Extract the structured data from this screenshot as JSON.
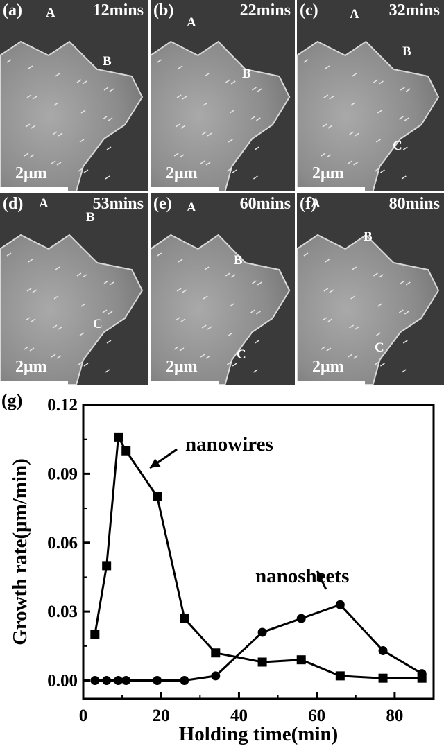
{
  "panels": [
    {
      "label": "(a)",
      "time": "12mins",
      "scale": "2μm",
      "markers": [
        "A",
        "B"
      ]
    },
    {
      "label": "(b)",
      "time": "22mins",
      "scale": "2μm",
      "markers": [
        "A",
        "B"
      ]
    },
    {
      "label": "(c)",
      "time": "32mins",
      "scale": "2μm",
      "markers": [
        "A",
        "B",
        "C"
      ]
    },
    {
      "label": "(d)",
      "time": "53mins",
      "scale": "2μm",
      "markers": [
        "A",
        "B",
        "C"
      ]
    },
    {
      "label": "(e)",
      "time": "60mins",
      "scale": "2μm",
      "markers": [
        "A",
        "B",
        "C"
      ]
    },
    {
      "label": "(f)",
      "time": "80mins",
      "scale": "2μm",
      "markers": [
        "A",
        "B",
        "C"
      ]
    }
  ],
  "chart_data": {
    "type": "line",
    "panel_label": "(g)",
    "xlabel": "Holding time(min)",
    "ylabel": "Growth rate(μm/min)",
    "xlim": [
      0,
      90
    ],
    "ylim": [
      -0.008,
      0.12
    ],
    "xticks": [
      "0",
      "20",
      "40",
      "60",
      "80"
    ],
    "yticks": [
      "0.00",
      "0.03",
      "0.06",
      "0.09",
      "0.12"
    ],
    "grid": false,
    "series": [
      {
        "name": "nanowires",
        "marker": "square",
        "x": [
          3,
          6,
          9,
          11,
          19,
          26,
          34,
          46,
          56,
          66,
          77,
          87
        ],
        "y": [
          0.02,
          0.05,
          0.106,
          0.1,
          0.08,
          0.027,
          0.012,
          0.008,
          0.009,
          0.002,
          0.001,
          0.001
        ]
      },
      {
        "name": "nanosheets",
        "marker": "circle",
        "x": [
          3,
          6,
          9,
          11,
          19,
          26,
          34,
          46,
          56,
          66,
          77,
          87
        ],
        "y": [
          0,
          0,
          0,
          0,
          0,
          0,
          0.002,
          0.021,
          0.027,
          0.033,
          0.013,
          0.003
        ]
      }
    ],
    "annotations": [
      "nanowires",
      "nanosheets"
    ]
  }
}
